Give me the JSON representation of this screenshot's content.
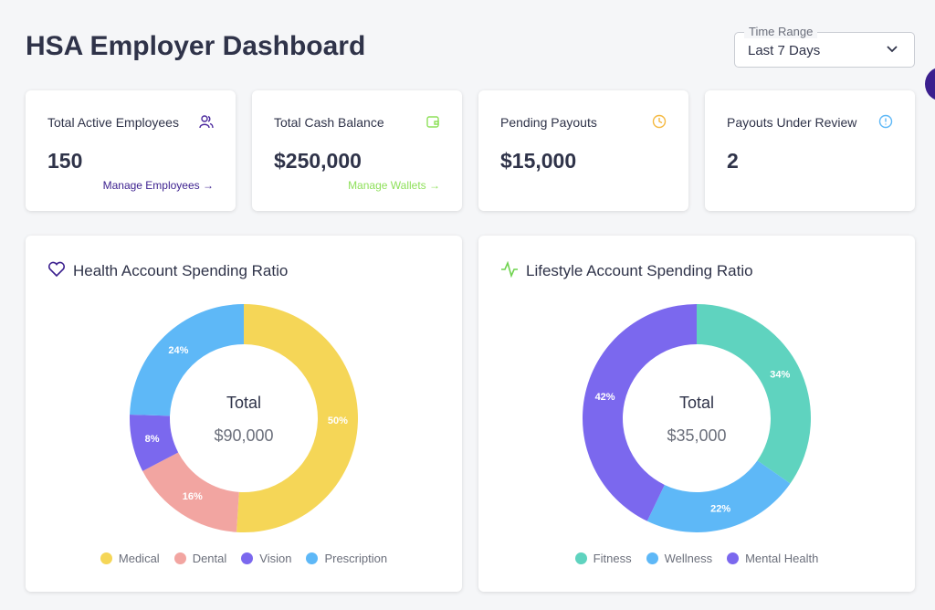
{
  "header": {
    "title": "HSA Employer Dashboard",
    "time_range": {
      "label": "Time Range",
      "value": "Last 7 Days"
    }
  },
  "cards": [
    {
      "title": "Total Active Employees",
      "value": "150",
      "link": "Manage Employees"
    },
    {
      "title": "Total Cash Balance",
      "value": "$250,000",
      "link": "Manage Wallets"
    },
    {
      "title": "Pending Payouts",
      "value": "$15,000"
    },
    {
      "title": "Payouts Under Review",
      "value": "2"
    }
  ],
  "chart_data": [
    {
      "type": "pie",
      "title": "Health Account Spending Ratio",
      "center_label": "Total",
      "center_value": "$90,000",
      "categories": [
        "Medical",
        "Dental",
        "Vision",
        "Prescription"
      ],
      "values": [
        50,
        16,
        8,
        24
      ],
      "value_labels": [
        "50%",
        "16%",
        "8%",
        "24%"
      ],
      "colors": [
        "#f5d657",
        "#f2a5a1",
        "#7b68ee",
        "#5eb8f7"
      ]
    },
    {
      "type": "pie",
      "title": "Lifestyle Account Spending Ratio",
      "center_label": "Total",
      "center_value": "$35,000",
      "categories": [
        "Fitness",
        "Wellness",
        "Mental Health"
      ],
      "values": [
        34,
        22,
        42
      ],
      "value_labels": [
        "34%",
        "22%",
        "42%"
      ],
      "colors": [
        "#5fd3bf",
        "#5eb8f7",
        "#7b68ee"
      ]
    }
  ]
}
